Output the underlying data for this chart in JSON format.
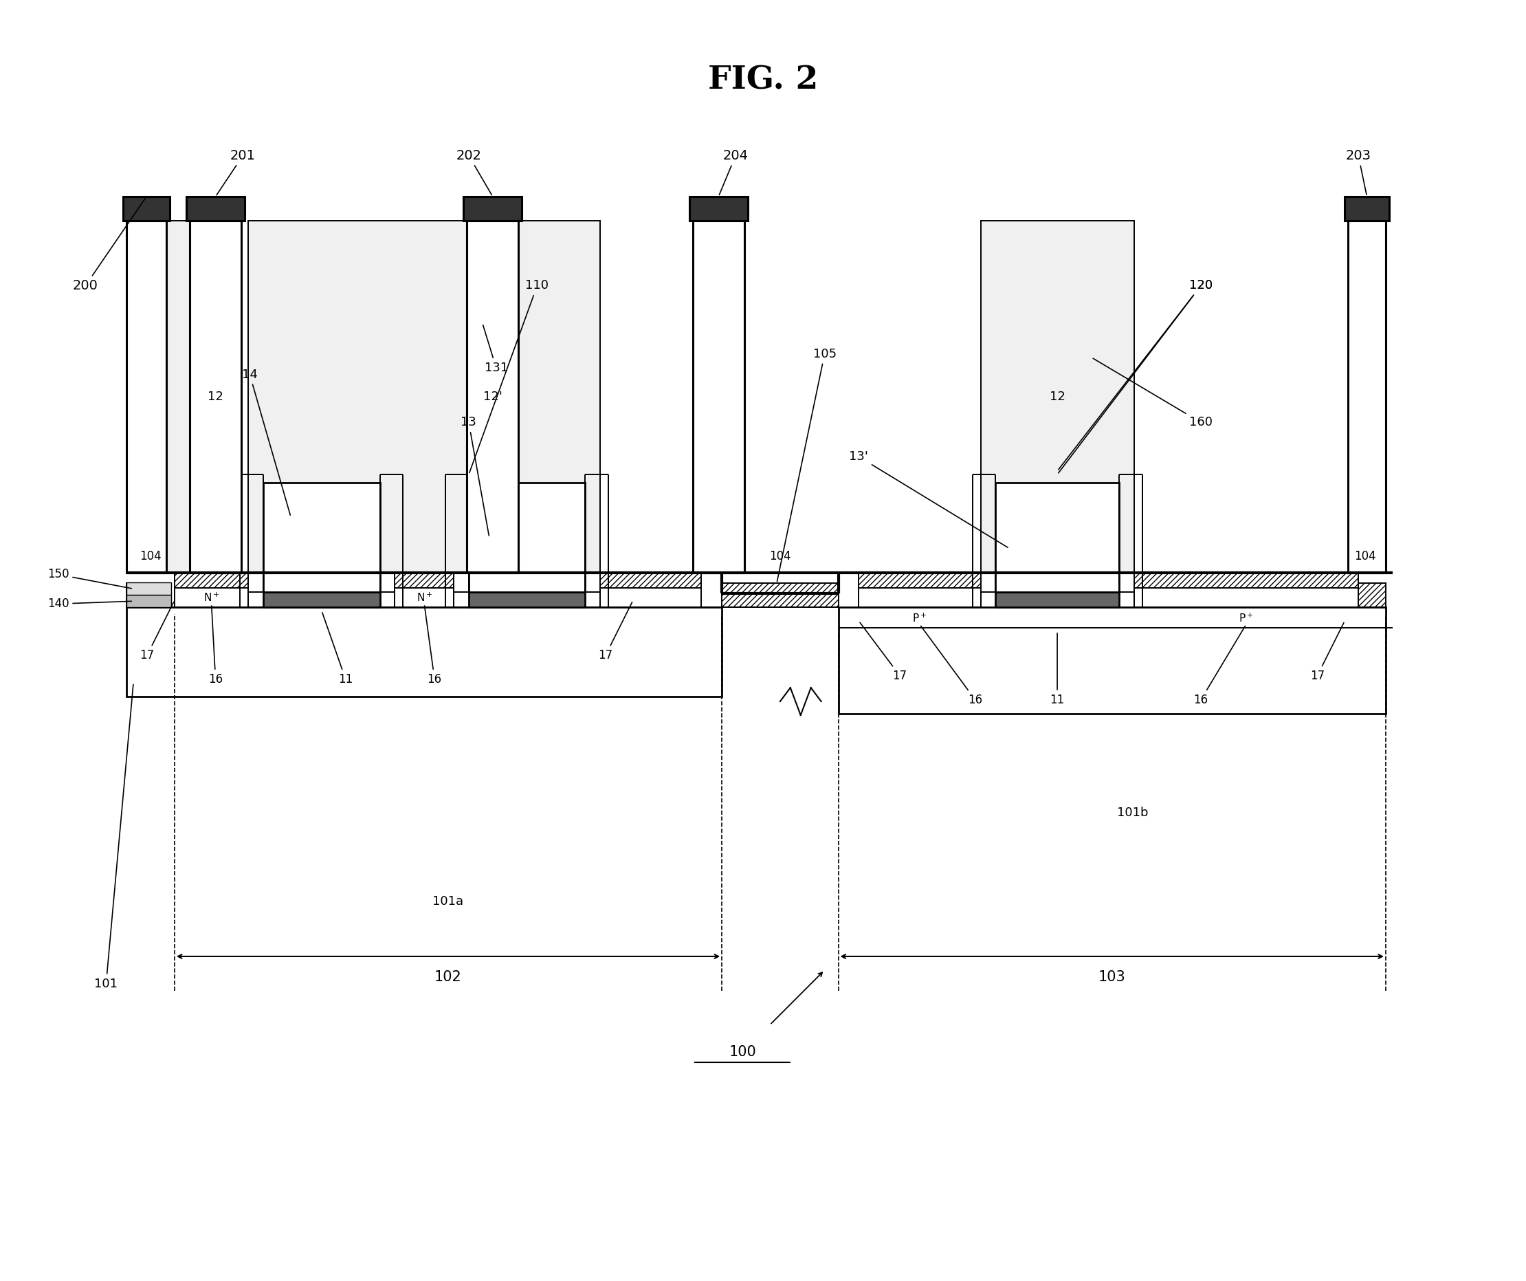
{
  "title": "FIG. 2",
  "bg_color": "#ffffff",
  "fig_width": 22.2,
  "fig_height": 18.63,
  "lw_main": 2.0,
  "lw_plug": 2.2,
  "lw_thin": 1.4,
  "lw_heavy": 3.0
}
